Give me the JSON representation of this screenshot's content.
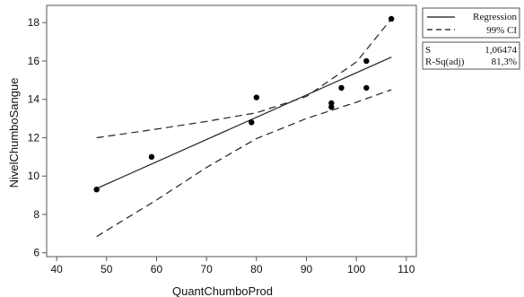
{
  "chart_data": {
    "type": "scatter",
    "title": "",
    "xlabel": "QuantChumboProd",
    "ylabel": "NivelChumboSangue",
    "xlim": [
      38,
      112
    ],
    "ylim": [
      5.8,
      18.9
    ],
    "x_ticks": [
      40,
      50,
      60,
      70,
      80,
      90,
      100,
      110
    ],
    "y_ticks": [
      6,
      8,
      10,
      12,
      14,
      16,
      18
    ],
    "grid": false,
    "points": [
      {
        "x": 48,
        "y": 9.3
      },
      {
        "x": 59,
        "y": 11.0
      },
      {
        "x": 79,
        "y": 12.8
      },
      {
        "x": 80,
        "y": 14.1
      },
      {
        "x": 95,
        "y": 13.8
      },
      {
        "x": 95,
        "y": 13.6
      },
      {
        "x": 97,
        "y": 14.6
      },
      {
        "x": 102,
        "y": 16.0
      },
      {
        "x": 102,
        "y": 14.6
      },
      {
        "x": 107,
        "y": 18.2
      }
    ],
    "series": [
      {
        "name": "Regression",
        "style": "solid",
        "x": [
          48,
          107
        ],
        "y": [
          9.35,
          16.2
        ]
      },
      {
        "name": "99% CI",
        "style": "dashed",
        "x": [
          48,
          60,
          70,
          80,
          90,
          100,
          107
        ],
        "y": [
          12.0,
          12.45,
          12.85,
          13.3,
          14.15,
          15.95,
          18.2
        ]
      },
      {
        "name": "99% CI",
        "style": "dashed",
        "x": [
          48,
          60,
          70,
          80,
          90,
          100,
          107
        ],
        "y": [
          6.85,
          8.75,
          10.45,
          11.95,
          13.0,
          13.85,
          14.5
        ]
      }
    ],
    "legend": {
      "placement": "top-right-outside",
      "entries": [
        {
          "label": "Regression",
          "style": "solid"
        },
        {
          "label": "99% CI",
          "style": "dashed"
        }
      ]
    },
    "stats": [
      {
        "label": "S",
        "value": "1,06474"
      },
      {
        "label": "R-Sq(adj)",
        "value": "81,3%"
      }
    ]
  }
}
